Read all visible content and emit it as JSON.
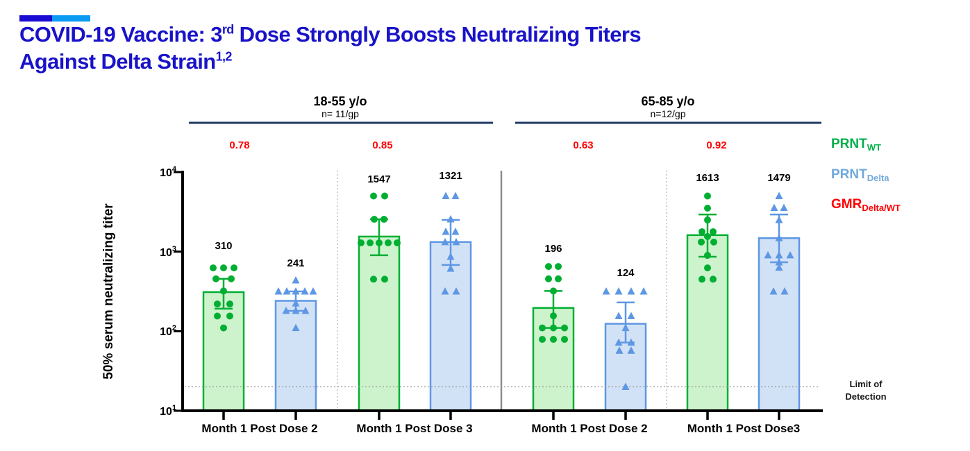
{
  "header": {
    "accent_dark_color": "#1A0BD2",
    "accent_light_color": "#0C9BF2",
    "title_color": "#1812C9",
    "title_line1_pre": "COVID-19 Vaccine: 3",
    "title_line1_sup": "rd",
    "title_line1_post": " Dose Strongly Boosts Neutralizing Titers",
    "title_line2": "Against Delta Strain",
    "title_line2_sup": "1,2"
  },
  "legend": {
    "items": [
      {
        "label": "PRNT",
        "sub": "WT",
        "color": "#00B04A"
      },
      {
        "label": "PRNT",
        "sub": "Delta",
        "color": "#6FA8DC"
      },
      {
        "label": "GMR",
        "sub": "Delta/WT",
        "color": "#FF0000"
      }
    ]
  },
  "chart_data": {
    "type": "bar",
    "yscale": "log",
    "ylabel": "50% serum neutralizing titer",
    "ylim": [
      10,
      10000
    ],
    "yticks": [
      {
        "base": "10",
        "exp": "4"
      },
      {
        "base": "10",
        "exp": "3"
      },
      {
        "base": "10",
        "exp": "2"
      },
      {
        "base": "10",
        "exp": "1"
      }
    ],
    "groups": [
      {
        "age_label": "18-55 y/o",
        "n_label": "n= 11/gp"
      },
      {
        "age_label": "65-85 y/o",
        "n_label": "n=12/gp"
      }
    ],
    "x_categories": [
      "Month 1 Post Dose 2",
      "Month 1 Post Dose 3",
      "Month 1 Post Dose 2",
      "Month 1 Post  Dose3"
    ],
    "gmr_label_values": [
      "0.78",
      "0.85",
      "0.63",
      "0.92"
    ],
    "gmr_color": "#FF0000",
    "limit_of_detection": 20,
    "limit_label_line1": "Limit of",
    "limit_label_line2": "Detection",
    "series": [
      {
        "id": "prnt-wt",
        "name": "PRNT_WT",
        "marker": "circle",
        "fill": "#CDF3CD",
        "stroke": "#00AF32"
      },
      {
        "id": "prnt-delta",
        "name": "PRNT_Delta",
        "marker": "triangle",
        "fill": "#D2E2F6",
        "stroke": "#5E97E4"
      }
    ],
    "bars": [
      {
        "series": "PRNT_WT",
        "group": "18-55 y/o",
        "x": "Month 1 Post Dose 2",
        "value": 310,
        "err_top": 455,
        "err_bot": 192,
        "points": [
          [
            -15,
            625
          ],
          [
            0,
            625
          ],
          [
            15,
            625
          ],
          [
            -11,
            455
          ],
          [
            11,
            455
          ],
          [
            0,
            320
          ],
          [
            -9,
            220
          ],
          [
            9,
            220
          ],
          [
            -9,
            155
          ],
          [
            9,
            155
          ],
          [
            0,
            110
          ]
        ]
      },
      {
        "series": "PRNT_Delta",
        "group": "18-55 y/o",
        "x": "Month 1 Post Dose 2",
        "value": 241,
        "err_top": 316,
        "err_bot": 180,
        "points": [
          [
            0,
            436
          ],
          [
            -25,
            316
          ],
          [
            -13,
            316
          ],
          [
            0,
            316
          ],
          [
            13,
            316
          ],
          [
            25,
            316
          ],
          [
            0,
            224
          ],
          [
            -14,
            180
          ],
          [
            0,
            180
          ],
          [
            14,
            180
          ],
          [
            0,
            110
          ]
        ]
      },
      {
        "series": "PRNT_WT",
        "group": "18-55 y/o",
        "x": "Month 1 Post Dose 3",
        "value": 1547,
        "err_top": 2550,
        "err_bot": 900,
        "points": [
          [
            -8,
            5000
          ],
          [
            8,
            5000
          ],
          [
            -7,
            2550
          ],
          [
            7,
            2550
          ],
          [
            -26,
            1290
          ],
          [
            -13,
            1290
          ],
          [
            0,
            1290
          ],
          [
            13,
            1290
          ],
          [
            26,
            1290
          ],
          [
            -8,
            450
          ],
          [
            8,
            450
          ]
        ]
      },
      {
        "series": "PRNT_Delta",
        "group": "18-55 y/o",
        "x": "Month 1 Post Dose 3",
        "value": 1321,
        "err_top": 2500,
        "err_bot": 680,
        "points": [
          [
            -7,
            5000
          ],
          [
            7,
            5000
          ],
          [
            0,
            2550
          ],
          [
            -7,
            1780
          ],
          [
            7,
            1780
          ],
          [
            -8,
            1320
          ],
          [
            8,
            1320
          ],
          [
            0,
            863
          ],
          [
            0,
            612
          ],
          [
            -8,
            316
          ],
          [
            8,
            316
          ]
        ]
      },
      {
        "series": "PRNT_WT",
        "group": "65-85 y/o",
        "x": "Month 1 Post Dose 2",
        "value": 196,
        "err_top": 320,
        "err_bot": 110,
        "points": [
          [
            -7,
            650
          ],
          [
            7,
            650
          ],
          [
            -7,
            455
          ],
          [
            7,
            455
          ],
          [
            0,
            320
          ],
          [
            0,
            156
          ],
          [
            -16,
            110
          ],
          [
            0,
            110
          ],
          [
            16,
            110
          ],
          [
            -16,
            79
          ],
          [
            0,
            79
          ],
          [
            16,
            79
          ]
        ]
      },
      {
        "series": "PRNT_Delta",
        "group": "65-85 y/o",
        "x": "Month 1 Post Dose 2",
        "value": 124,
        "err_top": 230,
        "err_bot": 72,
        "points": [
          [
            -28,
            316
          ],
          [
            -10,
            316
          ],
          [
            8,
            316
          ],
          [
            26,
            316
          ],
          [
            -10,
            155
          ],
          [
            8,
            155
          ],
          [
            0,
            110
          ],
          [
            -10,
            72
          ],
          [
            8,
            72
          ],
          [
            -9,
            57
          ],
          [
            8,
            57
          ],
          [
            0,
            20
          ]
        ]
      },
      {
        "series": "PRNT_WT",
        "group": "65-85 y/o",
        "x": "Month 1 Post  Dose3",
        "value": 1613,
        "err_top": 2930,
        "err_bot": 863,
        "points": [
          [
            0,
            5000
          ],
          [
            0,
            3520
          ],
          [
            0,
            2500
          ],
          [
            -8,
            1780
          ],
          [
            8,
            1780
          ],
          [
            -9,
            1320
          ],
          [
            9,
            1320
          ],
          [
            0,
            1550
          ],
          [
            0,
            897
          ],
          [
            0,
            625
          ],
          [
            -8,
            450
          ],
          [
            8,
            450
          ]
        ]
      },
      {
        "series": "PRNT_Delta",
        "group": "65-85 y/o",
        "x": "Month 1 Post  Dose3",
        "value": 1479,
        "err_top": 2930,
        "err_bot": 735,
        "points": [
          [
            0,
            5000
          ],
          [
            -7,
            3550
          ],
          [
            7,
            3550
          ],
          [
            0,
            2500
          ],
          [
            0,
            1480
          ],
          [
            -16,
            900
          ],
          [
            0,
            900
          ],
          [
            16,
            900
          ],
          [
            0,
            735
          ],
          [
            0,
            630
          ],
          [
            -8,
            316
          ],
          [
            8,
            316
          ]
        ]
      }
    ]
  }
}
